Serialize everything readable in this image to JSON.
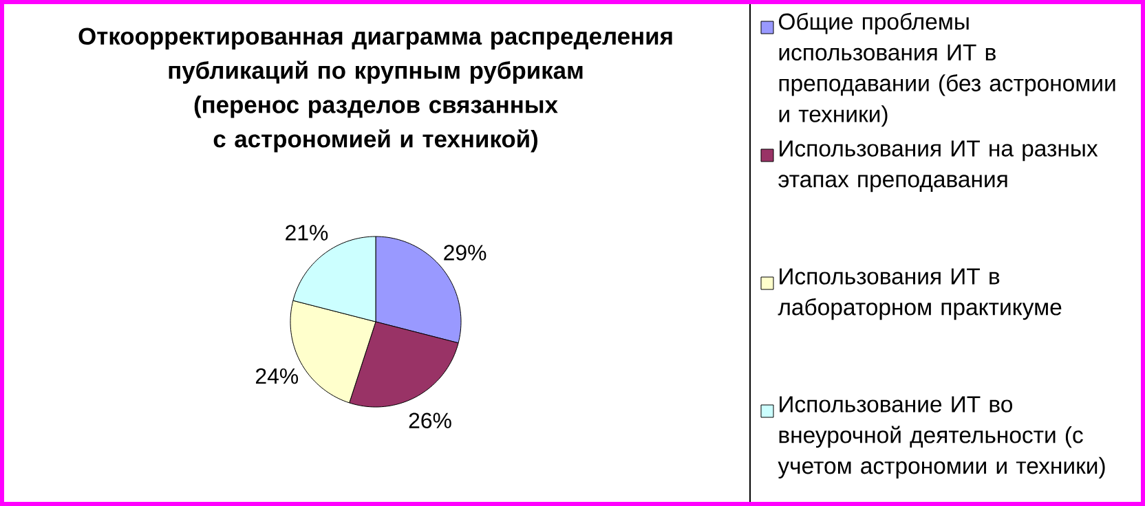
{
  "chart_data": {
    "type": "pie",
    "title": "Откоорректированная диаграмма распределения публикаций по крупным рубрикам",
    "subtitle": "(перенос разделов связанных с астрономией и техникой)",
    "categories": [
      "Общие проблемы использования ИТ в преподавании (без астрономии и техники)",
      "Использования ИТ на разных этапах преподавания",
      "Использования ИТ в лабораторном практикуме",
      "Использование ИТ во внеурочной деятельности (с учетом астрономии и техники)"
    ],
    "values": [
      29,
      26,
      24,
      21
    ],
    "value_labels": [
      "29%",
      "26%",
      "24%",
      "21%"
    ],
    "colors": [
      "#9999ff",
      "#993366",
      "#ffffcc",
      "#ccffff"
    ],
    "legend": "right"
  }
}
